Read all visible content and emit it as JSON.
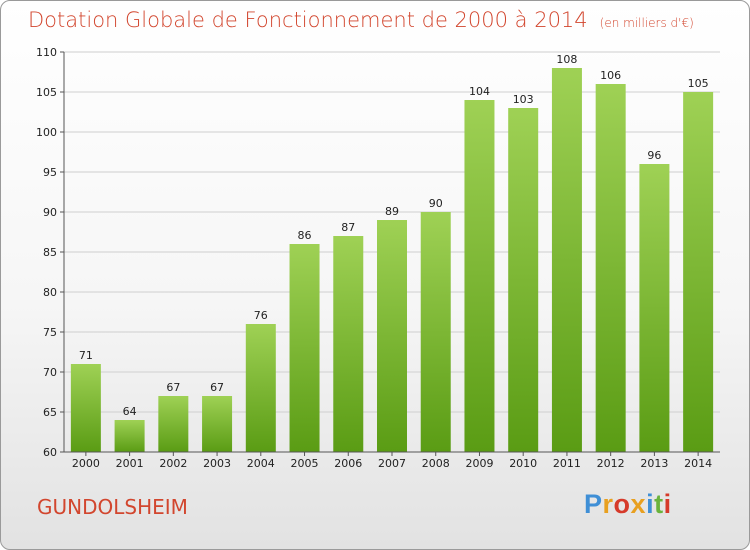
{
  "header": {
    "title": "Dotation Globale de Fonctionnement de 2000 à 2014",
    "unit": "(en milliers d'€)"
  },
  "footer": {
    "commune": "GUNDOLSHEIM",
    "brand_letters": [
      "P",
      "r",
      "o",
      "x",
      "i",
      "t",
      "i"
    ],
    "brand_colors": [
      "#3f8fd6",
      "#e8a020",
      "#d63a2a",
      "#e8a020",
      "#3f8fd6",
      "#6ab33c",
      "#d63a2a"
    ]
  },
  "colors": {
    "title": "#d2462e",
    "bar_top": "#9fd155",
    "bar_bottom": "#5a9c14",
    "grid": "#cfcfcf"
  },
  "chart_data": {
    "type": "bar",
    "title": "Dotation Globale de Fonctionnement de 2000 à 2014",
    "subtitle": "(en milliers d'€)",
    "xlabel": "",
    "ylabel": "",
    "categories": [
      "2000",
      "2001",
      "2002",
      "2003",
      "2004",
      "2005",
      "2006",
      "2007",
      "2008",
      "2009",
      "2010",
      "2011",
      "2012",
      "2013",
      "2014"
    ],
    "values": [
      71,
      64,
      67,
      67,
      76,
      86,
      87,
      89,
      90,
      104,
      103,
      108,
      106,
      96,
      105
    ],
    "ylim": [
      60,
      110
    ],
    "yticks": [
      60,
      65,
      70,
      75,
      80,
      85,
      90,
      95,
      100,
      105,
      110
    ],
    "grid": true,
    "legend": "none"
  }
}
